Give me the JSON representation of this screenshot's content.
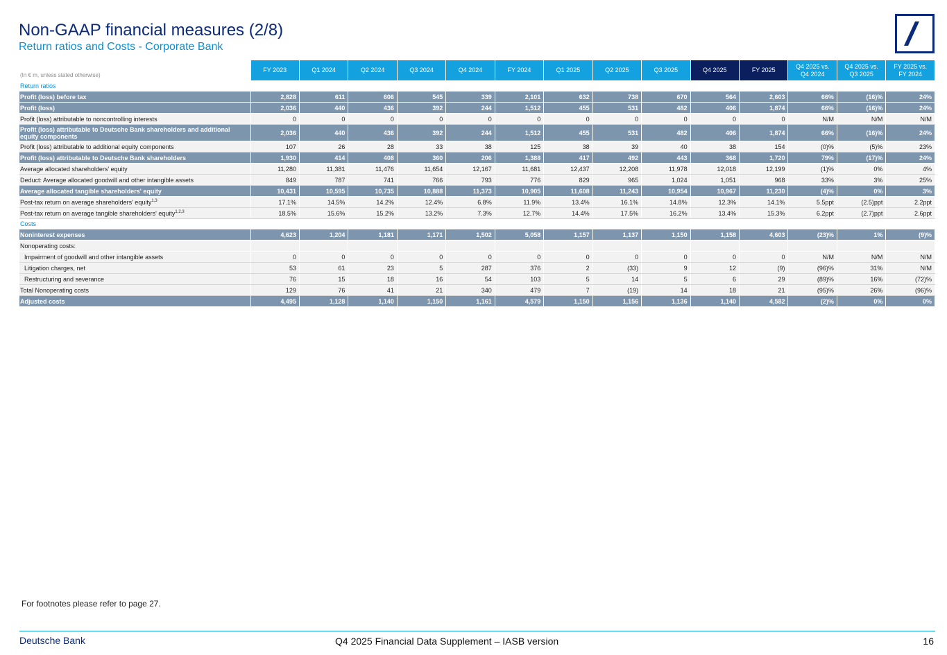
{
  "header": {
    "title": "Non-GAAP financial measures (2/8)",
    "subtitle": "Return ratios and Costs - Corporate Bank"
  },
  "table": {
    "unit_note": "(In € m, unless stated otherwise)",
    "columns": [
      "FY 2023",
      "Q1 2024",
      "Q2 2024",
      "Q3 2024",
      "Q4 2024",
      "FY 2024",
      "Q1 2025",
      "Q2 2025",
      "Q3 2025",
      "Q4 2025",
      "FY 2025",
      "Q4 2025 vs. Q4 2024",
      "Q4 2025 vs. Q3 2025",
      "FY 2025 vs. FY 2024"
    ],
    "rows": [
      {
        "type": "section",
        "label": "Return ratios"
      },
      {
        "type": "hl",
        "label": "Profit (loss) before tax",
        "values": [
          "2,828",
          "611",
          "606",
          "545",
          "339",
          "2,101",
          "632",
          "738",
          "670",
          "564",
          "2,603",
          "66%",
          "(16)%",
          "24%"
        ]
      },
      {
        "type": "hl",
        "label": "Profit (loss)",
        "values": [
          "2,036",
          "440",
          "436",
          "392",
          "244",
          "1,512",
          "455",
          "531",
          "482",
          "406",
          "1,874",
          "66%",
          "(16)%",
          "24%"
        ]
      },
      {
        "type": "norm",
        "label": "Profit (loss) attributable to noncontrolling interests",
        "values": [
          "0",
          "0",
          "0",
          "0",
          "0",
          "0",
          "0",
          "0",
          "0",
          "0",
          "0",
          "N/M",
          "N/M",
          "N/M"
        ]
      },
      {
        "type": "hl",
        "tall": true,
        "label": "Profit (loss) attributable to Deutsche Bank shareholders and additional equity components",
        "values": [
          "2,036",
          "440",
          "436",
          "392",
          "244",
          "1,512",
          "455",
          "531",
          "482",
          "406",
          "1,874",
          "66%",
          "(16)%",
          "24%"
        ]
      },
      {
        "type": "norm",
        "label": "Profit (loss) attributable to additional equity components",
        "values": [
          "107",
          "26",
          "28",
          "33",
          "38",
          "125",
          "38",
          "39",
          "40",
          "38",
          "154",
          "(0)%",
          "(5)%",
          "23%"
        ]
      },
      {
        "type": "hl",
        "label": "Profit (loss) attributable to Deutsche Bank shareholders",
        "values": [
          "1,930",
          "414",
          "408",
          "360",
          "206",
          "1,388",
          "417",
          "492",
          "443",
          "368",
          "1,720",
          "79%",
          "(17)%",
          "24%"
        ]
      },
      {
        "type": "norm",
        "label": "Average allocated shareholders' equity",
        "values": [
          "11,280",
          "11,381",
          "11,476",
          "11,654",
          "12,167",
          "11,681",
          "12,437",
          "12,208",
          "11,978",
          "12,018",
          "12,199",
          "(1)%",
          "0%",
          "4%"
        ]
      },
      {
        "type": "norm",
        "label": "Deduct: Average allocated goodwill and other intangible assets",
        "values": [
          "849",
          "787",
          "741",
          "766",
          "793",
          "776",
          "829",
          "965",
          "1,024",
          "1,051",
          "968",
          "33%",
          "3%",
          "25%"
        ]
      },
      {
        "type": "hl",
        "label": "Average allocated tangible shareholders' equity",
        "values": [
          "10,431",
          "10,595",
          "10,735",
          "10,888",
          "11,373",
          "10,905",
          "11,608",
          "11,243",
          "10,954",
          "10,967",
          "11,230",
          "(4)%",
          "0%",
          "3%"
        ]
      },
      {
        "type": "norm",
        "label": "Post-tax return on average shareholders' equity",
        "sup": "1,3",
        "values": [
          "17.1%",
          "14.5%",
          "14.2%",
          "12.4%",
          "6.8%",
          "11.9%",
          "13.4%",
          "16.1%",
          "14.8%",
          "12.3%",
          "14.1%",
          "5.5ppt",
          "(2.5)ppt",
          "2.2ppt"
        ]
      },
      {
        "type": "norm",
        "label": "Post-tax return on average tangible shareholders' equity",
        "sup": "1,2,3",
        "values": [
          "18.5%",
          "15.6%",
          "15.2%",
          "13.2%",
          "7.3%",
          "12.7%",
          "14.4%",
          "17.5%",
          "16.2%",
          "13.4%",
          "15.3%",
          "6.2ppt",
          "(2.7)ppt",
          "2.6ppt"
        ]
      },
      {
        "type": "section",
        "label": "Costs"
      },
      {
        "type": "hl",
        "label": "Noninterest expenses",
        "values": [
          "4,623",
          "1,204",
          "1,181",
          "1,171",
          "1,502",
          "5,058",
          "1,157",
          "1,137",
          "1,150",
          "1,158",
          "4,603",
          "(23)%",
          "1%",
          "(9)%"
        ]
      },
      {
        "type": "empty",
        "label": "Nonoperating costs:"
      },
      {
        "type": "norm",
        "indent": true,
        "label": "Impairment of goodwill and other intangible assets",
        "values": [
          "0",
          "0",
          "0",
          "0",
          "0",
          "0",
          "0",
          "0",
          "0",
          "0",
          "0",
          "N/M",
          "N/M",
          "N/M"
        ]
      },
      {
        "type": "norm",
        "indent": true,
        "label": "Litigation charges, net",
        "values": [
          "53",
          "61",
          "23",
          "5",
          "287",
          "376",
          "2",
          "(33)",
          "9",
          "12",
          "(9)",
          "(96)%",
          "31%",
          "N/M"
        ]
      },
      {
        "type": "norm",
        "indent": true,
        "label": "Restructuring and severance",
        "values": [
          "76",
          "15",
          "18",
          "16",
          "54",
          "103",
          "5",
          "14",
          "5",
          "6",
          "29",
          "(89)%",
          "16%",
          "(72)%"
        ]
      },
      {
        "type": "norm",
        "label": "Total Nonoperating costs",
        "values": [
          "129",
          "76",
          "41",
          "21",
          "340",
          "479",
          "7",
          "(19)",
          "14",
          "18",
          "21",
          "(95)%",
          "26%",
          "(96)%"
        ]
      },
      {
        "type": "hl",
        "label": "Adjusted costs",
        "values": [
          "4,495",
          "1,128",
          "1,140",
          "1,150",
          "1,161",
          "4,579",
          "1,150",
          "1,156",
          "1,136",
          "1,140",
          "4,582",
          "(2)%",
          "0%",
          "0%"
        ]
      }
    ]
  },
  "footer": {
    "footnote": "For footnotes please refer to page 27.",
    "brand": "Deutsche Bank",
    "document": "Q4 2025 Financial Data Supplement – IASB version",
    "page_number": "16"
  }
}
